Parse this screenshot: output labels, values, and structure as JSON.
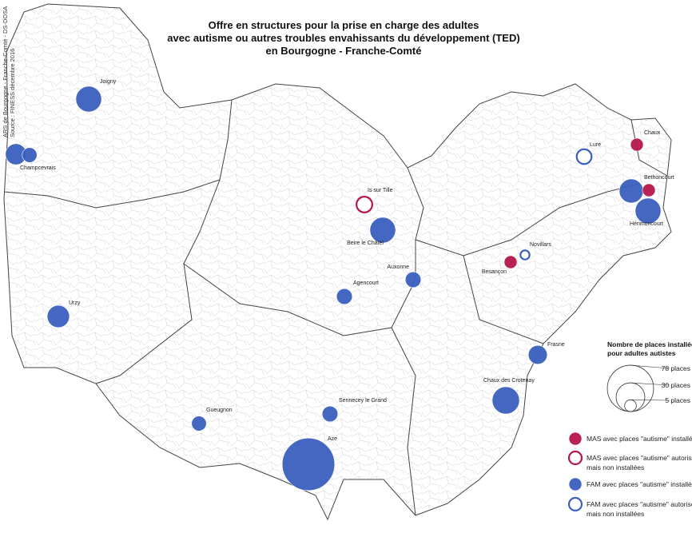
{
  "title": [
    "Offre en structures pour la prise en charge des adultes",
    "avec autisme ou autres troubles envahissants du développement (TED)",
    "en Bourgogne - Franche-Comté"
  ],
  "credits": [
    "ARS de Bourgogne - Franche-Comté  -  DS-DOSA",
    "Source : FINESS décembre 2016"
  ],
  "legend": {
    "size_title": [
      "Nombre de places installées",
      "pour adultes autistes"
    ],
    "sizes": [
      {
        "value": 78,
        "label": "78 places"
      },
      {
        "value": 30,
        "label": "30 places"
      },
      {
        "value": 5,
        "label": "5 places"
      }
    ],
    "items": [
      {
        "type": "mas_installed",
        "lines": [
          "MAS avec places \"autisme\" installées"
        ]
      },
      {
        "type": "mas_authorized",
        "lines": [
          "MAS avec places \"autisme\" autorisées",
          "mais non installées"
        ]
      },
      {
        "type": "fam_installed",
        "lines": [
          "FAM avec places \"autisme\" installées"
        ]
      },
      {
        "type": "fam_authorized",
        "lines": [
          "FAM avec places \"autisme\" autorisées",
          "mais non installées"
        ]
      }
    ],
    "colors": {
      "mas": "#b5174a",
      "fam": "#3a5fbf"
    }
  },
  "sites": [
    {
      "name": "Joigny",
      "type": "fam_installed",
      "places": 24
    },
    {
      "name": "Champcevrais",
      "type": "fam_installed",
      "places": 16
    },
    {
      "name": null,
      "type": "fam_installed",
      "places": 8
    },
    {
      "name": "Urzy",
      "type": "fam_installed",
      "places": 18
    },
    {
      "name": "Is sur Tille",
      "type": "mas_authorized",
      "places": 9
    },
    {
      "name": "Beire le Châtel",
      "type": "fam_installed",
      "places": 24
    },
    {
      "name": "Auxonne",
      "type": "fam_installed",
      "places": 9
    },
    {
      "name": "Agencourt",
      "type": "fam_installed",
      "places": 9
    },
    {
      "name": "Gueugnon",
      "type": "fam_installed",
      "places": 8
    },
    {
      "name": "Sennecey le Grand",
      "type": "fam_installed",
      "places": 9
    },
    {
      "name": "Aze",
      "type": "fam_installed",
      "places": 100
    },
    {
      "name": "Chaux des Crotenay",
      "type": "fam_installed",
      "places": 27
    },
    {
      "name": "Frasne",
      "type": "fam_installed",
      "places": 13
    },
    {
      "name": "Besançon",
      "type": "mas_installed",
      "places": 6
    },
    {
      "name": "Novillars",
      "type": "fam_authorized",
      "places": 3
    },
    {
      "name": "Lure",
      "type": "fam_authorized",
      "places": 8
    },
    {
      "name": "Chaux",
      "type": "mas_installed",
      "places": 6
    },
    {
      "name": "Bethoncourt",
      "type": "fam_installed",
      "places": 21
    },
    {
      "name": null,
      "type": "mas_installed",
      "places": 6
    },
    {
      "name": "Hérimoncourt",
      "type": "fam_installed",
      "places": 24
    }
  ]
}
